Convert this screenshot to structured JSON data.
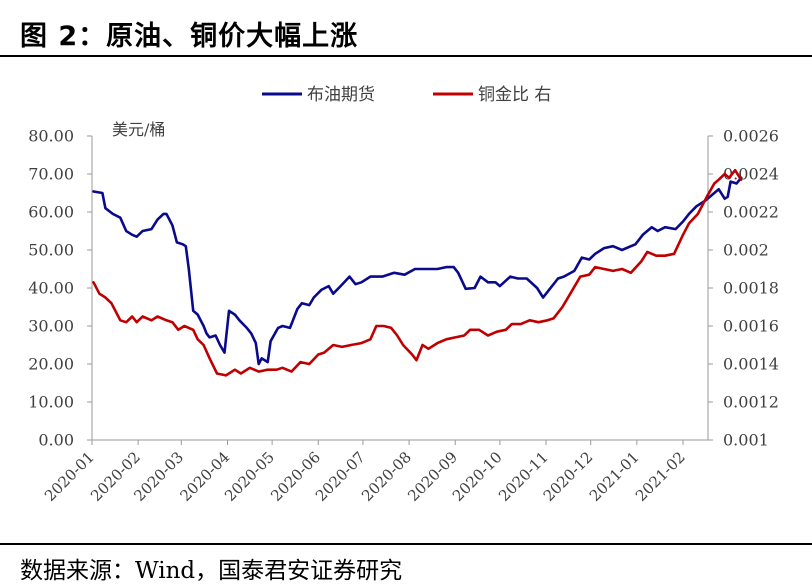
{
  "page": {
    "title": "图 2：原油、铜价大幅上涨",
    "source": "数据来源：Wind，国泰君安证券研究"
  },
  "chart_data": {
    "type": "line",
    "unit_label": "美元/桶",
    "legend_position": "top",
    "grid": false,
    "x_ticks": [
      "2020-01",
      "2020-02",
      "2020-03",
      "2020-04",
      "2020-05",
      "2020-06",
      "2020-07",
      "2020-08",
      "2020-09",
      "2020-10",
      "2020-11",
      "2020-12",
      "2021-01",
      "2021-02"
    ],
    "y_left": {
      "ticks": [
        "0.00",
        "10.00",
        "20.00",
        "30.00",
        "40.00",
        "50.00",
        "60.00",
        "70.00",
        "80.00"
      ],
      "range": [
        0,
        80
      ]
    },
    "y_right": {
      "ticks": [
        "0.001",
        "0.0012",
        "0.0014",
        "0.0016",
        "0.0018",
        "0.002",
        "0.0022",
        "0.0024",
        "0.0026"
      ],
      "range": [
        0.001,
        0.0026
      ]
    },
    "series": [
      {
        "name": "布油期货",
        "axis": "left",
        "color": "#0a0a8c",
        "points": [
          [
            "2020-01-02",
            65.4
          ],
          [
            "2020-01-08",
            65.0
          ],
          [
            "2020-01-10",
            61.0
          ],
          [
            "2020-01-15",
            59.5
          ],
          [
            "2020-01-20",
            58.5
          ],
          [
            "2020-01-24",
            55.0
          ],
          [
            "2020-01-28",
            54.0
          ],
          [
            "2020-01-31",
            53.5
          ],
          [
            "2020-02-04",
            55.0
          ],
          [
            "2020-02-10",
            55.5
          ],
          [
            "2020-02-14",
            58.0
          ],
          [
            "2020-02-18",
            59.5
          ],
          [
            "2020-02-20",
            59.5
          ],
          [
            "2020-02-24",
            56.5
          ],
          [
            "2020-02-27",
            52.0
          ],
          [
            "2020-03-02",
            51.5
          ],
          [
            "2020-03-04",
            51.0
          ],
          [
            "2020-03-06",
            45.0
          ],
          [
            "2020-03-09",
            34.0
          ],
          [
            "2020-03-12",
            33.0
          ],
          [
            "2020-03-16",
            30.0
          ],
          [
            "2020-03-18",
            28.0
          ],
          [
            "2020-03-20",
            27.0
          ],
          [
            "2020-03-24",
            27.5
          ],
          [
            "2020-03-27",
            25.0
          ],
          [
            "2020-03-30",
            23.0
          ],
          [
            "2020-04-02",
            34.0
          ],
          [
            "2020-04-06",
            33.0
          ],
          [
            "2020-04-09",
            31.5
          ],
          [
            "2020-04-14",
            29.5
          ],
          [
            "2020-04-17",
            28.0
          ],
          [
            "2020-04-20",
            25.5
          ],
          [
            "2020-04-22",
            20.0
          ],
          [
            "2020-04-24",
            21.5
          ],
          [
            "2020-04-28",
            20.5
          ],
          [
            "2020-04-30",
            26.0
          ],
          [
            "2020-05-05",
            29.5
          ],
          [
            "2020-05-08",
            30.0
          ],
          [
            "2020-05-13",
            29.5
          ],
          [
            "2020-05-18",
            34.5
          ],
          [
            "2020-05-21",
            36.0
          ],
          [
            "2020-05-26",
            35.5
          ],
          [
            "2020-05-29",
            37.5
          ],
          [
            "2020-06-03",
            39.5
          ],
          [
            "2020-06-08",
            40.5
          ],
          [
            "2020-06-11",
            38.5
          ],
          [
            "2020-06-16",
            40.5
          ],
          [
            "2020-06-22",
            43.0
          ],
          [
            "2020-06-26",
            41.0
          ],
          [
            "2020-06-30",
            41.5
          ],
          [
            "2020-07-06",
            43.0
          ],
          [
            "2020-07-14",
            43.0
          ],
          [
            "2020-07-22",
            44.0
          ],
          [
            "2020-07-29",
            43.5
          ],
          [
            "2020-08-05",
            45.0
          ],
          [
            "2020-08-13",
            45.0
          ],
          [
            "2020-08-20",
            45.0
          ],
          [
            "2020-08-26",
            45.5
          ],
          [
            "2020-08-31",
            45.5
          ],
          [
            "2020-09-03",
            44.0
          ],
          [
            "2020-09-08",
            39.8
          ],
          [
            "2020-09-14",
            40.0
          ],
          [
            "2020-09-18",
            43.0
          ],
          [
            "2020-09-23",
            41.5
          ],
          [
            "2020-09-28",
            41.5
          ],
          [
            "2020-10-01",
            40.5
          ],
          [
            "2020-10-08",
            43.0
          ],
          [
            "2020-10-13",
            42.5
          ],
          [
            "2020-10-19",
            42.5
          ],
          [
            "2020-10-26",
            40.0
          ],
          [
            "2020-10-30",
            37.5
          ],
          [
            "2020-11-03",
            39.5
          ],
          [
            "2020-11-09",
            42.5
          ],
          [
            "2020-11-13",
            43.0
          ],
          [
            "2020-11-20",
            44.5
          ],
          [
            "2020-11-25",
            48.0
          ],
          [
            "2020-11-30",
            47.5
          ],
          [
            "2020-12-04",
            49.0
          ],
          [
            "2020-12-10",
            50.5
          ],
          [
            "2020-12-16",
            51.0
          ],
          [
            "2020-12-22",
            50.0
          ],
          [
            "2020-12-28",
            51.0
          ],
          [
            "2020-12-31",
            51.5
          ],
          [
            "2021-01-05",
            54.0
          ],
          [
            "2021-01-11",
            56.0
          ],
          [
            "2021-01-15",
            55.0
          ],
          [
            "2021-01-20",
            56.0
          ],
          [
            "2021-01-27",
            55.5
          ],
          [
            "2021-02-01",
            57.5
          ],
          [
            "2021-02-05",
            59.5
          ],
          [
            "2021-02-10",
            61.5
          ],
          [
            "2021-02-16",
            63.0
          ],
          [
            "2021-02-22",
            65.0
          ],
          [
            "2021-02-25",
            66.0
          ],
          [
            "2021-03-01",
            63.5
          ],
          [
            "2021-03-03",
            64.0
          ],
          [
            "2021-03-05",
            68.0
          ],
          [
            "2021-03-09",
            67.5
          ],
          [
            "2021-03-12",
            69.0
          ]
        ]
      },
      {
        "name": "铜金比 右",
        "axis": "right",
        "color": "#c00000",
        "points": [
          [
            "2020-01-02",
            0.00183
          ],
          [
            "2020-01-06",
            0.00177
          ],
          [
            "2020-01-10",
            0.00175
          ],
          [
            "2020-01-14",
            0.00172
          ],
          [
            "2020-01-20",
            0.00163
          ],
          [
            "2020-01-24",
            0.00162
          ],
          [
            "2020-01-28",
            0.00165
          ],
          [
            "2020-01-31",
            0.00162
          ],
          [
            "2020-02-04",
            0.00165
          ],
          [
            "2020-02-10",
            0.00163
          ],
          [
            "2020-02-14",
            0.00165
          ],
          [
            "2020-02-20",
            0.00163
          ],
          [
            "2020-02-24",
            0.00162
          ],
          [
            "2020-02-28",
            0.00158
          ],
          [
            "2020-03-03",
            0.0016
          ],
          [
            "2020-03-09",
            0.00158
          ],
          [
            "2020-03-12",
            0.00153
          ],
          [
            "2020-03-16",
            0.0015
          ],
          [
            "2020-03-20",
            0.00143
          ],
          [
            "2020-03-25",
            0.00135
          ],
          [
            "2020-03-31",
            0.00134
          ],
          [
            "2020-04-06",
            0.00137
          ],
          [
            "2020-04-10",
            0.00135
          ],
          [
            "2020-04-16",
            0.00138
          ],
          [
            "2020-04-22",
            0.00136
          ],
          [
            "2020-04-28",
            0.00137
          ],
          [
            "2020-05-04",
            0.00137
          ],
          [
            "2020-05-08",
            0.00138
          ],
          [
            "2020-05-14",
            0.00136
          ],
          [
            "2020-05-20",
            0.00141
          ],
          [
            "2020-05-26",
            0.0014
          ],
          [
            "2020-06-01",
            0.00145
          ],
          [
            "2020-06-05",
            0.00146
          ],
          [
            "2020-06-11",
            0.0015
          ],
          [
            "2020-06-17",
            0.00149
          ],
          [
            "2020-06-23",
            0.0015
          ],
          [
            "2020-06-30",
            0.00151
          ],
          [
            "2020-07-06",
            0.00153
          ],
          [
            "2020-07-10",
            0.0016
          ],
          [
            "2020-07-15",
            0.0016
          ],
          [
            "2020-07-20",
            0.00159
          ],
          [
            "2020-07-24",
            0.00155
          ],
          [
            "2020-07-28",
            0.0015
          ],
          [
            "2020-08-03",
            0.00145
          ],
          [
            "2020-08-06",
            0.00142
          ],
          [
            "2020-08-10",
            0.0015
          ],
          [
            "2020-08-14",
            0.00148
          ],
          [
            "2020-08-20",
            0.00151
          ],
          [
            "2020-08-26",
            0.00153
          ],
          [
            "2020-09-01",
            0.00154
          ],
          [
            "2020-09-07",
            0.00155
          ],
          [
            "2020-09-11",
            0.00158
          ],
          [
            "2020-09-17",
            0.00158
          ],
          [
            "2020-09-23",
            0.00155
          ],
          [
            "2020-09-29",
            0.00157
          ],
          [
            "2020-10-05",
            0.00158
          ],
          [
            "2020-10-09",
            0.00161
          ],
          [
            "2020-10-15",
            0.00161
          ],
          [
            "2020-10-21",
            0.00163
          ],
          [
            "2020-10-27",
            0.00162
          ],
          [
            "2020-11-02",
            0.00163
          ],
          [
            "2020-11-06",
            0.00164
          ],
          [
            "2020-11-12",
            0.0017
          ],
          [
            "2020-11-18",
            0.00178
          ],
          [
            "2020-11-24",
            0.00186
          ],
          [
            "2020-11-30",
            0.00187
          ],
          [
            "2020-12-04",
            0.00191
          ],
          [
            "2020-12-10",
            0.0019
          ],
          [
            "2020-12-16",
            0.00189
          ],
          [
            "2020-12-22",
            0.0019
          ],
          [
            "2020-12-28",
            0.00188
          ],
          [
            "2021-01-04",
            0.00194
          ],
          [
            "2021-01-08",
            0.00199
          ],
          [
            "2021-01-14",
            0.00197
          ],
          [
            "2021-01-20",
            0.00197
          ],
          [
            "2021-01-26",
            0.00198
          ],
          [
            "2021-02-01",
            0.00208
          ],
          [
            "2021-02-05",
            0.00214
          ],
          [
            "2021-02-11",
            0.00219
          ],
          [
            "2021-02-17",
            0.00228
          ],
          [
            "2021-02-22",
            0.00235
          ],
          [
            "2021-02-25",
            0.00237
          ],
          [
            "2021-03-01",
            0.0024
          ],
          [
            "2021-03-04",
            0.00238
          ],
          [
            "2021-03-08",
            0.00242
          ],
          [
            "2021-03-12",
            0.00237
          ]
        ]
      }
    ]
  }
}
